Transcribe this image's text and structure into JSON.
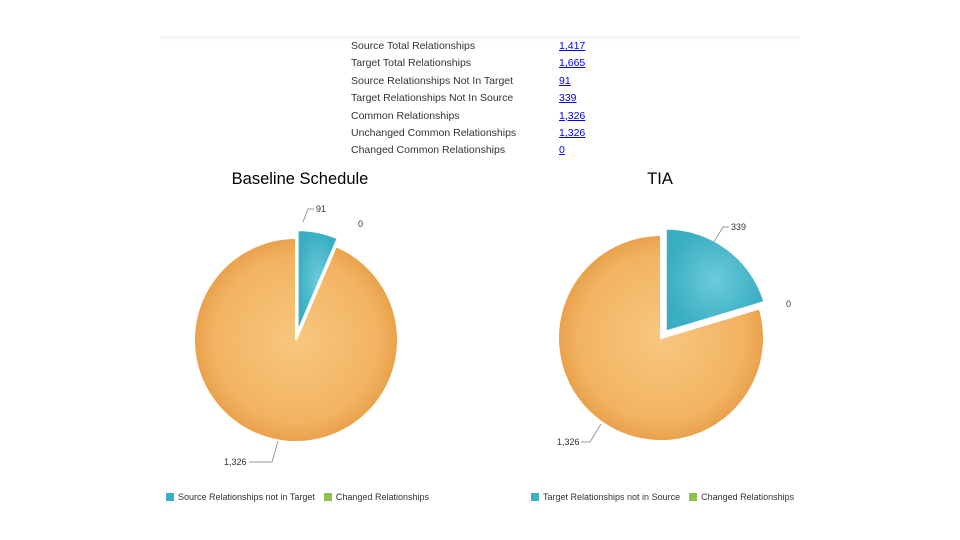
{
  "summary": [
    {
      "label": "Source Total Relationships",
      "value": "1,417"
    },
    {
      "label": "Target Total Relationships",
      "value": "1,665"
    },
    {
      "label": "Source Relationships Not In Target",
      "value": "91"
    },
    {
      "label": "Target Relationships Not In Source",
      "value": "339"
    },
    {
      "label": "Common Relationships",
      "value": "1,326"
    },
    {
      "label": "Unchanged Common Relationships",
      "value": "1,326"
    },
    {
      "label": "Changed Common Relationships",
      "value": "0"
    }
  ],
  "colors": {
    "teal": "#3bb0c4",
    "orange": "#f0ac55",
    "green": "#8cc152",
    "link": "#0000ee"
  },
  "chart_data": [
    {
      "type": "pie",
      "title": "Baseline Schedule",
      "slices": [
        {
          "label": "Source Relationships not in Target",
          "value": 91,
          "data_label": "91",
          "color": "#3bb0c4",
          "exploded": true
        },
        {
          "label": "Changed Relationships",
          "value": 0,
          "data_label": "0",
          "color": "#8cc152"
        },
        {
          "label": "",
          "value": 1326,
          "data_label": "1,326",
          "color": "#f0ac55"
        }
      ],
      "legend": [
        {
          "label": "Source Relationships not in Target",
          "color": "#3bb0c4"
        },
        {
          "label": "Changed Relationships",
          "color": "#8cc152"
        }
      ],
      "legend_position": "bottom"
    },
    {
      "type": "pie",
      "title": "TIA",
      "slices": [
        {
          "label": "Target Relationships not in Source",
          "value": 339,
          "data_label": "339",
          "color": "#3bb0c4",
          "exploded": true
        },
        {
          "label": "Changed Relationships",
          "value": 0,
          "data_label": "0",
          "color": "#8cc152"
        },
        {
          "label": "",
          "value": 1326,
          "data_label": "1,326",
          "color": "#f0ac55"
        }
      ],
      "legend": [
        {
          "label": "Target Relationships not in Source",
          "color": "#3bb0c4"
        },
        {
          "label": "Changed Relationships",
          "color": "#8cc152"
        }
      ],
      "legend_position": "bottom"
    }
  ]
}
